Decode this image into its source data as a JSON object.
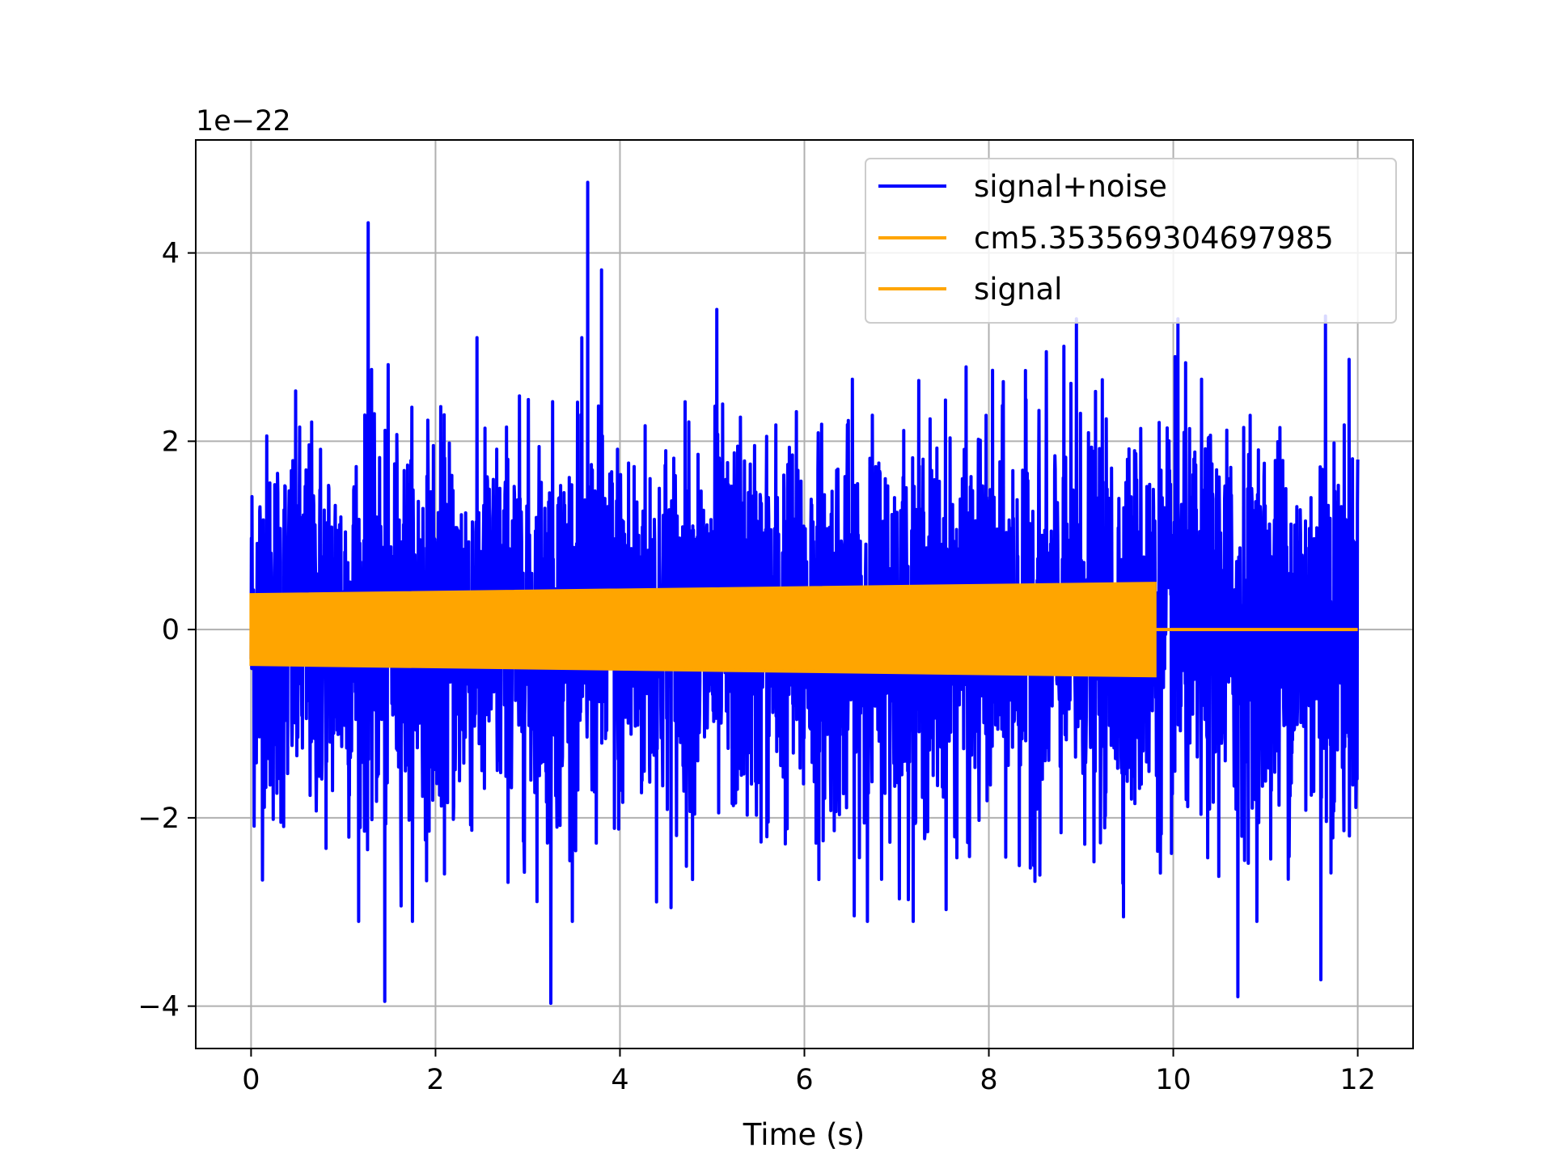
{
  "chart_data": {
    "type": "line",
    "title": "",
    "xlabel": "Time (s)",
    "ylabel": "",
    "y_offset_text": "1e−22",
    "xlim": [
      -0.6,
      12.6
    ],
    "ylim": [
      -4.45,
      5.2
    ],
    "xticks": [
      0,
      2,
      4,
      6,
      8,
      10,
      12
    ],
    "xtick_labels": [
      "0",
      "2",
      "4",
      "6",
      "8",
      "10",
      "12"
    ],
    "yticks": [
      -4,
      -2,
      0,
      2,
      4
    ],
    "ytick_labels": [
      "−4",
      "−2",
      "0",
      "2",
      "4"
    ],
    "grid": true,
    "legend_position": "top-right",
    "colors": {
      "signal_noise": "#0000ff",
      "signal": "#ffa500",
      "grid": "#b0b0b0",
      "axes": "#000000"
    },
    "series": [
      {
        "name": "signal+noise",
        "color": "#0000ff",
        "x_range": [
          0,
          12
        ],
        "typical_amplitude": 1.3,
        "peaks": [
          {
            "x": 1.27,
            "y": 4.32
          },
          {
            "x": 3.65,
            "y": 4.75
          },
          {
            "x": 3.8,
            "y": 3.82
          },
          {
            "x": 1.45,
            "y": -3.95
          },
          {
            "x": 3.25,
            "y": -3.97
          },
          {
            "x": 10.7,
            "y": -3.9
          },
          {
            "x": 11.6,
            "y": -3.72
          },
          {
            "x": 11.65,
            "y": 3.33
          },
          {
            "x": 10.05,
            "y": 3.3
          },
          {
            "x": 8.95,
            "y": 3.3
          },
          {
            "x": 5.05,
            "y": 3.4
          }
        ]
      },
      {
        "name": "cm5.353569304697985",
        "color": "#ffa500",
        "x_range": [
          0,
          12
        ],
        "amplitude_start": 0.37,
        "amplitude_end": 0.49,
        "end_time": 9.8
      },
      {
        "name": "signal",
        "color": "#ffa500",
        "x_range": [
          0,
          12
        ],
        "amplitude_start": 0.37,
        "amplitude_end": 0.49,
        "end_time": 9.8
      }
    ]
  }
}
